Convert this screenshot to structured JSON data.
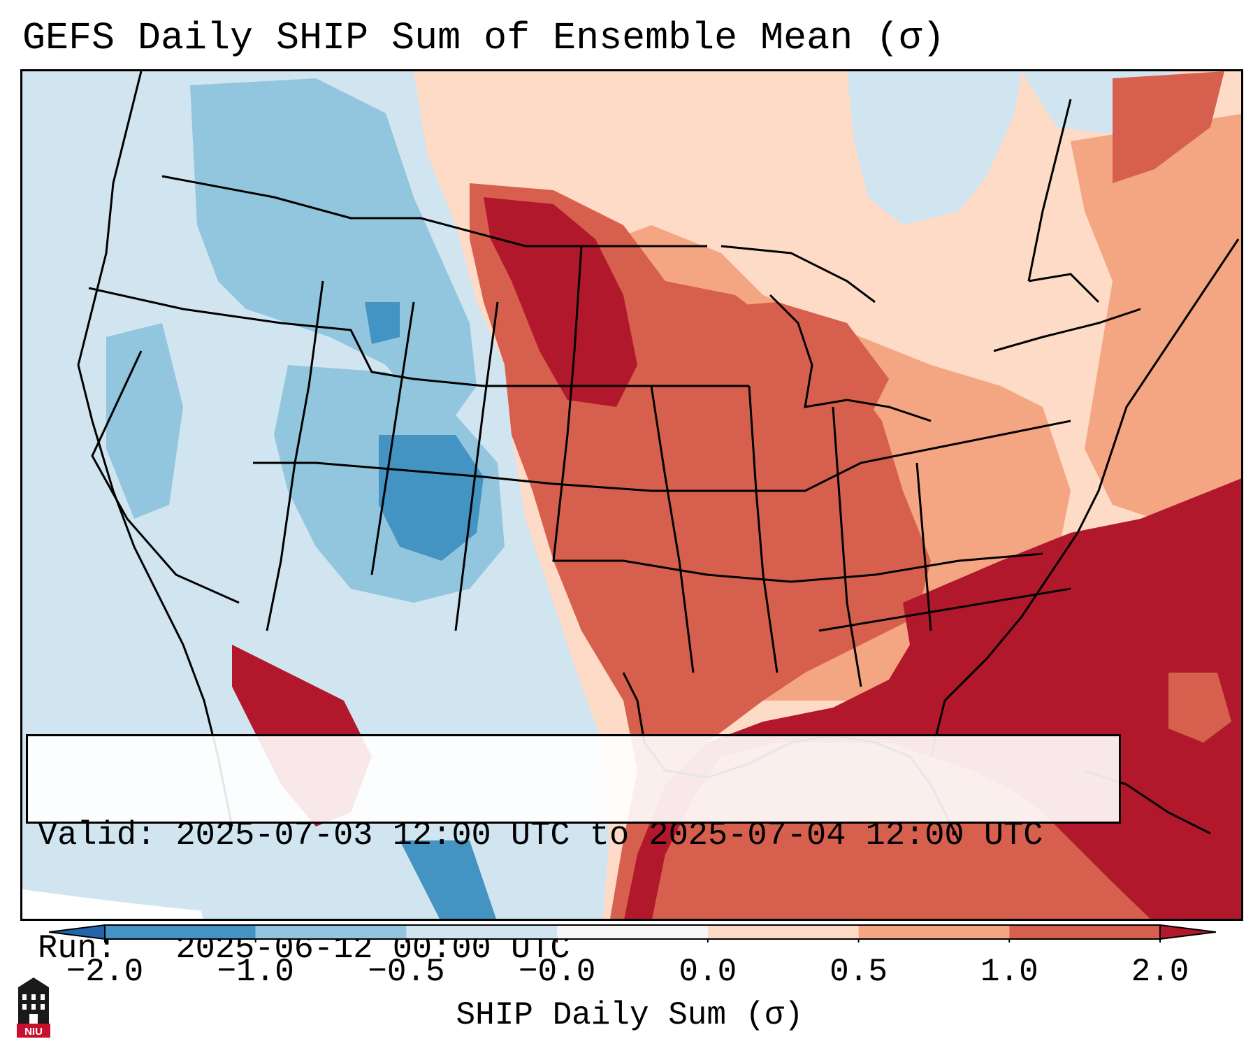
{
  "title": "GEFS Daily SHIP Sum of Ensemble Mean (σ)",
  "info": {
    "valid_label": "Valid:",
    "valid_value": "2025-07-03 12:00 UTC to 2025-07-04 12:00 UTC",
    "run_label": "Run:",
    "run_value": "2025-06-12 00:00 UTC"
  },
  "colorbar": {
    "label": "SHIP Daily Sum (σ)",
    "ticks": [
      "−2.0",
      "−1.0",
      "−0.5",
      "−0.0",
      "0.0",
      "0.5",
      "1.0",
      "2.0"
    ],
    "bins": [
      {
        "color": "#4393c3"
      },
      {
        "color": "#92c5de"
      },
      {
        "color": "#d1e5f0"
      },
      {
        "color": "#f7f7f7"
      },
      {
        "color": "#fddbc7"
      },
      {
        "color": "#f4a582"
      },
      {
        "color": "#d6604d"
      }
    ],
    "extend_low_color": "#2166ac",
    "extend_high_color": "#b2182b"
  },
  "logo": {
    "text": "NIU"
  },
  "colors": {
    "ocean": "#d1e5f0",
    "outside": "#ffffff",
    "border": "#000000"
  }
}
